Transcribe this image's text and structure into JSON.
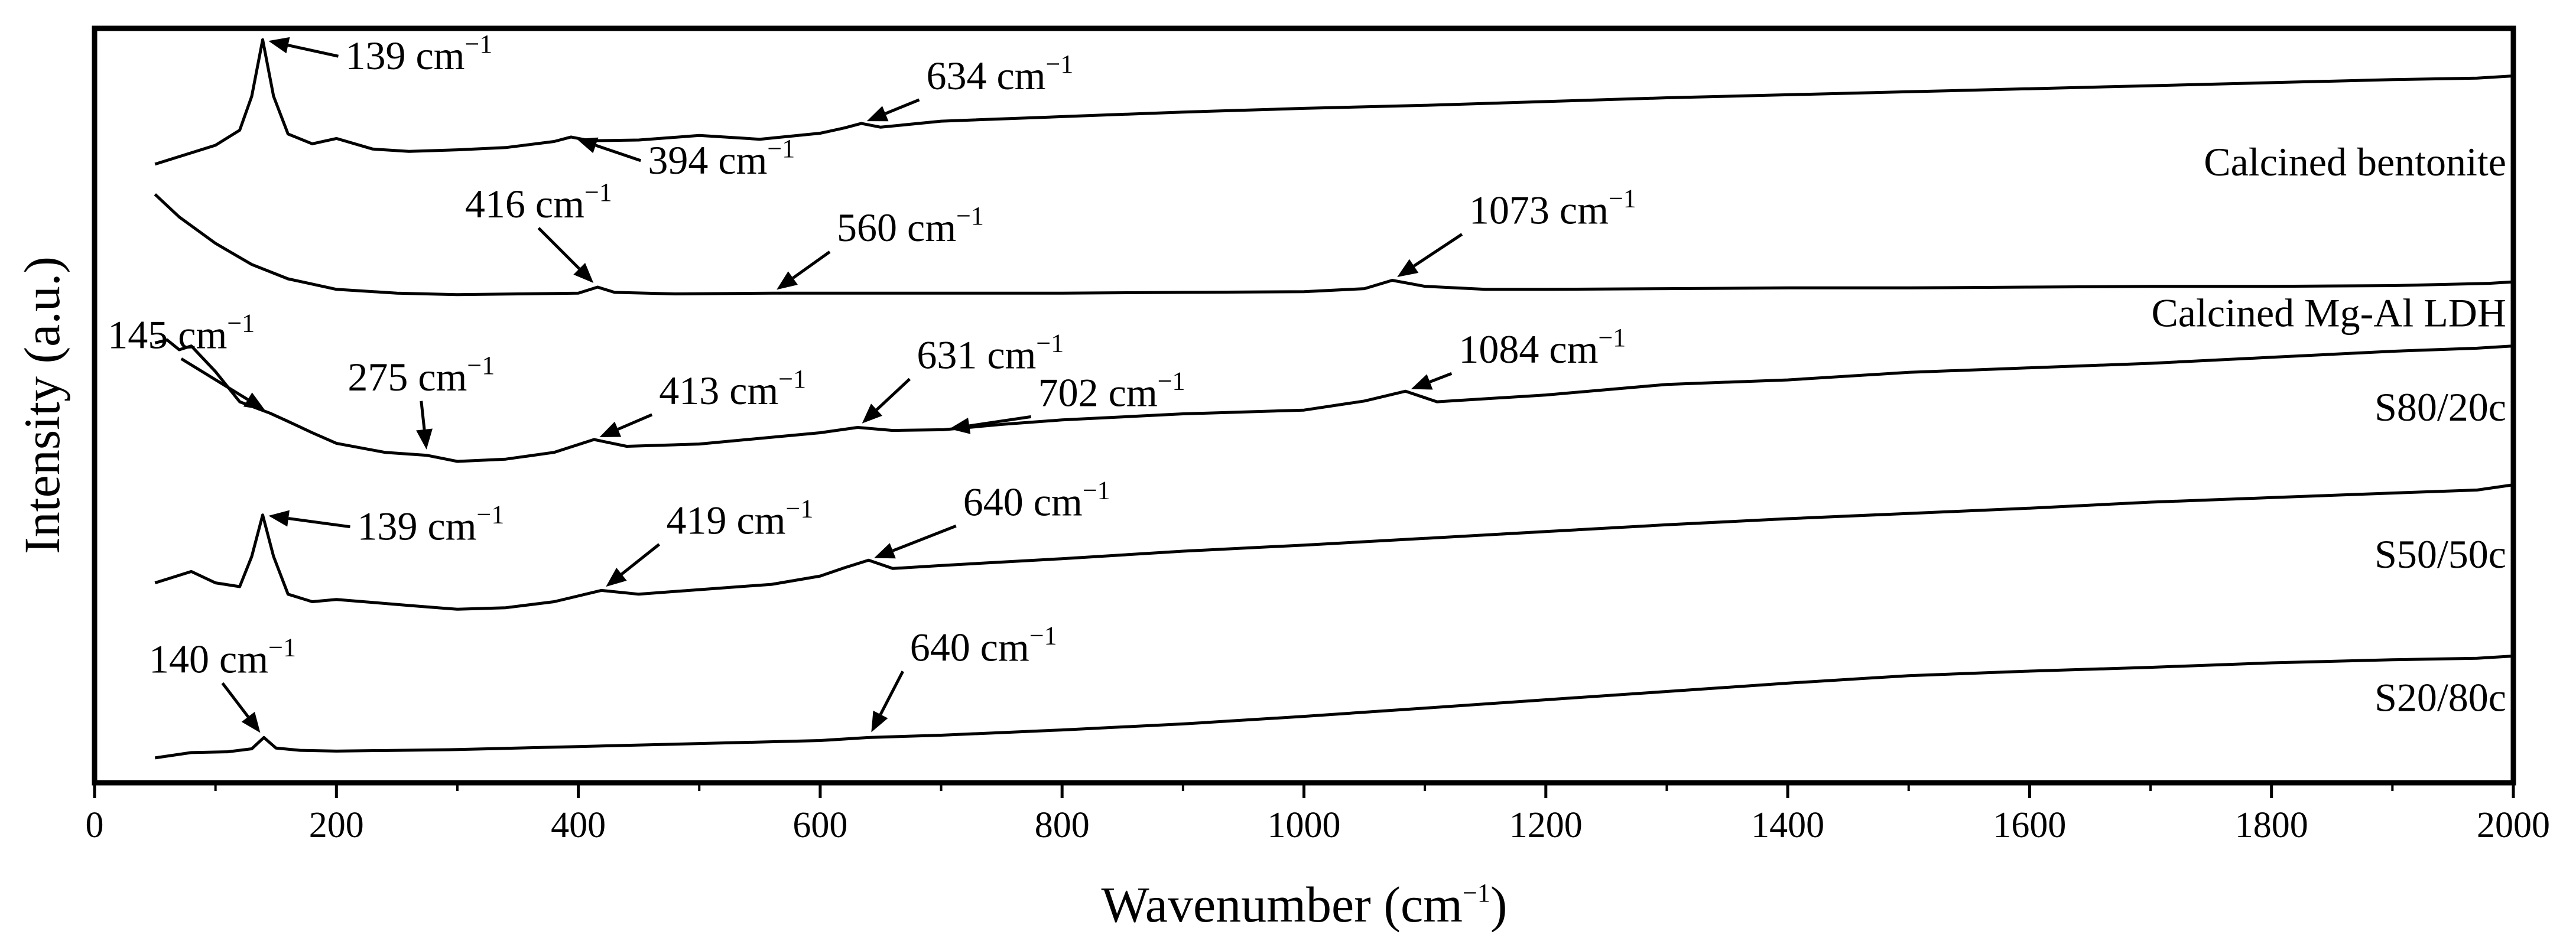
{
  "chart_data": {
    "type": "line",
    "title": "",
    "xlabel": "Wavenumber (cm",
    "xlabel_sup": "−1",
    "xlabel_close": ")",
    "ylabel": "Intensity (a.u.)",
    "xlim": [
      0,
      2000
    ],
    "ylim": [
      0,
      100
    ],
    "x_ticks": [
      0,
      200,
      400,
      600,
      800,
      1000,
      1200,
      1400,
      1600,
      1800,
      2000
    ],
    "x_tick_labels": [
      "0",
      "200",
      "400",
      "600",
      "800",
      "1000",
      "1200",
      "1400",
      "1600",
      "1800",
      "2000"
    ],
    "x_minor_step": 100,
    "y_ticks_visible": false,
    "grid": false,
    "unit_sup": "−1",
    "series": [
      {
        "name": "Calcined bentonite",
        "label": "Calcined bentonite",
        "x": [
          50,
          100,
          120,
          130,
          139,
          148,
          160,
          180,
          200,
          230,
          260,
          300,
          340,
          380,
          394,
          410,
          450,
          500,
          550,
          600,
          620,
          634,
          650,
          700,
          800,
          900,
          1000,
          1100,
          1200,
          1300,
          1400,
          1500,
          1600,
          1700,
          1800,
          1900,
          1970,
          2000
        ],
        "y": [
          82.0,
          84.5,
          86.5,
          91.0,
          98.5,
          91.0,
          86.0,
          84.7,
          85.4,
          84.0,
          83.7,
          83.9,
          84.2,
          85.0,
          85.6,
          85.1,
          85.2,
          85.8,
          85.3,
          86.1,
          86.8,
          87.4,
          86.9,
          87.7,
          88.3,
          88.9,
          89.4,
          89.8,
          90.3,
          90.8,
          91.2,
          91.6,
          92.0,
          92.4,
          92.8,
          93.2,
          93.4,
          93.7
        ],
        "annotations": [
          {
            "label": "139",
            "x": 139,
            "y": 98.5
          },
          {
            "label": "394",
            "x": 394,
            "y": 85.6
          },
          {
            "label": "634",
            "x": 634,
            "y": 87.4
          }
        ]
      },
      {
        "name": "Calcined Mg-Al LDH",
        "label": "Calcined Mg-Al LDH",
        "x": [
          50,
          70,
          100,
          130,
          160,
          200,
          250,
          300,
          350,
          400,
          416,
          430,
          480,
          560,
          600,
          700,
          800,
          900,
          1000,
          1050,
          1073,
          1100,
          1150,
          1200,
          1300,
          1400,
          1500,
          1600,
          1700,
          1800,
          1900,
          1980,
          2000
        ],
        "y": [
          78.0,
          75.0,
          71.5,
          68.7,
          66.8,
          65.4,
          64.9,
          64.7,
          64.8,
          64.9,
          65.7,
          65.0,
          64.8,
          64.9,
          64.9,
          64.9,
          64.9,
          65.0,
          65.1,
          65.5,
          66.6,
          65.8,
          65.4,
          65.4,
          65.5,
          65.6,
          65.6,
          65.7,
          65.8,
          65.8,
          65.9,
          66.2,
          66.4
        ],
        "annotations": [
          {
            "label": "416",
            "x": 416,
            "y": 65.7
          },
          {
            "label": "560",
            "x": 560,
            "y": 64.9
          },
          {
            "label": "1073",
            "x": 1073,
            "y": 66.6
          }
        ]
      },
      {
        "name": "S80/20c",
        "label": "S80/20c",
        "x": [
          50,
          60,
          70,
          80,
          100,
          120,
          145,
          160,
          180,
          200,
          240,
          275,
          300,
          340,
          380,
          413,
          440,
          500,
          560,
          600,
          631,
          660,
          702,
          750,
          800,
          900,
          1000,
          1050,
          1084,
          1110,
          1200,
          1300,
          1400,
          1500,
          1600,
          1700,
          1800,
          1900,
          1970,
          2000
        ],
        "y": [
          58.3,
          58.7,
          57.4,
          57.9,
          54.5,
          50.5,
          49.0,
          47.9,
          46.4,
          45.0,
          43.8,
          43.4,
          42.6,
          42.9,
          43.8,
          45.5,
          44.6,
          44.9,
          45.8,
          46.4,
          47.1,
          46.7,
          46.8,
          47.5,
          48.1,
          48.9,
          49.4,
          50.6,
          51.9,
          50.5,
          51.4,
          52.8,
          53.4,
          54.4,
          55.0,
          55.6,
          56.4,
          57.2,
          57.6,
          57.9
        ],
        "annotations": [
          {
            "label": "145",
            "x": 145,
            "y": 49.0
          },
          {
            "label": "275",
            "x": 275,
            "y": 43.4
          },
          {
            "label": "413",
            "x": 413,
            "y": 45.5
          },
          {
            "label": "631",
            "x": 631,
            "y": 47.1
          },
          {
            "label": "702",
            "x": 702,
            "y": 46.8
          },
          {
            "label": "1084",
            "x": 1084,
            "y": 51.9
          }
        ]
      },
      {
        "name": "S50/50c",
        "label": "S50/50c",
        "x": [
          50,
          60,
          80,
          100,
          120,
          130,
          139,
          148,
          160,
          180,
          200,
          230,
          260,
          300,
          340,
          380,
          419,
          450,
          500,
          560,
          600,
          620,
          640,
          660,
          700,
          800,
          900,
          1000,
          1100,
          1200,
          1300,
          1400,
          1500,
          1600,
          1700,
          1800,
          1900,
          1970,
          2000
        ],
        "y": [
          26.5,
          27.0,
          28.0,
          26.5,
          26.0,
          30.0,
          35.5,
          30.0,
          25.0,
          24.0,
          24.3,
          23.9,
          23.5,
          23.0,
          23.2,
          24.0,
          25.5,
          25.0,
          25.6,
          26.3,
          27.4,
          28.5,
          29.5,
          28.4,
          28.8,
          29.7,
          30.7,
          31.5,
          32.4,
          33.3,
          34.2,
          35.0,
          35.7,
          36.4,
          37.2,
          37.8,
          38.4,
          38.8,
          39.5
        ],
        "annotations": [
          {
            "label": "139",
            "x": 139,
            "y": 35.5
          },
          {
            "label": "419",
            "x": 419,
            "y": 25.5
          },
          {
            "label": "640",
            "x": 640,
            "y": 29.5
          }
        ]
      },
      {
        "name": "S20/80c",
        "label": "S20/80c",
        "x": [
          50,
          80,
          110,
          130,
          140,
          150,
          170,
          200,
          300,
          400,
          500,
          600,
          640,
          700,
          800,
          900,
          1000,
          1100,
          1200,
          1300,
          1400,
          1500,
          1600,
          1700,
          1800,
          1900,
          1970,
          2000
        ],
        "y": [
          3.3,
          4.0,
          4.1,
          4.5,
          6.0,
          4.6,
          4.3,
          4.2,
          4.4,
          4.8,
          5.2,
          5.6,
          6.0,
          6.3,
          7.0,
          7.8,
          8.8,
          9.9,
          11.0,
          12.1,
          13.2,
          14.2,
          14.8,
          15.3,
          15.9,
          16.3,
          16.5,
          16.8
        ],
        "annotations": [
          {
            "label": "140",
            "x": 140,
            "y": 6.0
          },
          {
            "label": "640",
            "x": 640,
            "y": 6.0
          }
        ]
      }
    ]
  }
}
